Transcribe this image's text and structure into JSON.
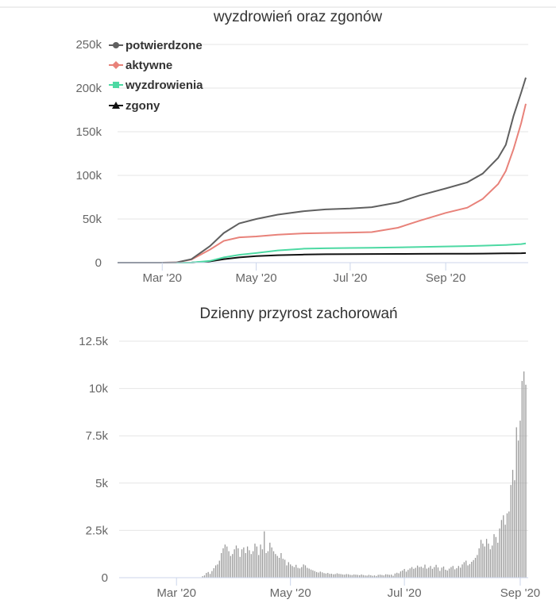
{
  "chart_data": [
    {
      "type": "line",
      "title": "wyzdrowień oraz zgonów",
      "xlabel": "",
      "ylabel": "",
      "x_ticks": [
        "Mar '20",
        "May '20",
        "Jul '20",
        "Sep '20"
      ],
      "y_ticks": [
        "0",
        "50k",
        "100k",
        "150k",
        "200k",
        "250k"
      ],
      "ylim": [
        0,
        250000
      ],
      "grid": true,
      "legend_position": "top-left",
      "x": [
        "2020-02-01",
        "2020-03-01",
        "2020-03-10",
        "2020-03-20",
        "2020-04-01",
        "2020-04-10",
        "2020-04-20",
        "2020-05-01",
        "2020-05-15",
        "2020-06-01",
        "2020-06-15",
        "2020-07-01",
        "2020-07-15",
        "2020-08-01",
        "2020-08-15",
        "2020-09-01",
        "2020-09-15",
        "2020-09-25",
        "2020-10-05",
        "2020-10-10",
        "2020-10-15",
        "2020-10-20",
        "2020-10-23"
      ],
      "series": [
        {
          "name": "potwierdzone",
          "color": "#606060",
          "marker": "circle",
          "values": [
            0,
            0,
            200,
            4000,
            19000,
            34000,
            45000,
            50000,
            55000,
            59000,
            61000,
            62000,
            63500,
            69000,
            77000,
            85000,
            92000,
            102000,
            120000,
            135000,
            168000,
            195000,
            212000
          ]
        },
        {
          "name": "aktywne",
          "color": "#e8827a",
          "marker": "diamond",
          "values": [
            0,
            0,
            180,
            3500,
            15000,
            25000,
            29000,
            30000,
            32000,
            33500,
            34000,
            34500,
            35000,
            40000,
            48000,
            57000,
            63000,
            73000,
            90000,
            105000,
            130000,
            160000,
            182000
          ]
        },
        {
          "name": "wyzdrowienia",
          "color": "#4dd9a3",
          "marker": "square",
          "values": [
            0,
            0,
            0,
            50,
            2000,
            6000,
            9000,
            11000,
            14000,
            16000,
            16500,
            16800,
            17000,
            17500,
            18000,
            18500,
            19000,
            19500,
            20000,
            20300,
            20800,
            21300,
            22000
          ]
        },
        {
          "name": "zgony",
          "color": "#111111",
          "marker": "triangle",
          "values": [
            0,
            0,
            0,
            50,
            1500,
            4000,
            6000,
            7500,
            8500,
            9300,
            9600,
            9800,
            9900,
            10000,
            10100,
            10200,
            10300,
            10400,
            10500,
            10600,
            10700,
            10800,
            11000
          ]
        }
      ]
    },
    {
      "type": "bar",
      "title": "Dzienny przyrost zachorowań",
      "xlabel": "",
      "ylabel": "",
      "x_ticks": [
        "Mar '20",
        "May '20",
        "Jul '20",
        "Sep '20"
      ],
      "y_ticks": [
        "0",
        "2.5k",
        "5k",
        "7.5k",
        "10k",
        "12.5k"
      ],
      "ylim": [
        0,
        12500
      ],
      "grid": true,
      "start_date": "2020-02-01",
      "color": "#999999",
      "values": [
        0,
        0,
        0,
        0,
        0,
        0,
        0,
        0,
        0,
        0,
        0,
        0,
        0,
        0,
        0,
        0,
        0,
        0,
        0,
        0,
        0,
        0,
        0,
        0,
        0,
        0,
        0,
        0,
        0,
        0,
        0,
        0,
        0,
        0,
        0,
        0,
        0,
        0,
        0,
        0,
        0,
        0,
        0,
        80,
        120,
        250,
        300,
        200,
        350,
        500,
        650,
        700,
        900,
        1300,
        1550,
        1750,
        1650,
        1400,
        1150,
        1250,
        1500,
        1700,
        1550,
        1100,
        1500,
        1600,
        1300,
        1650,
        1450,
        1250,
        1400,
        1800,
        1650,
        1200,
        1750,
        1500,
        2450,
        1300,
        1400,
        1850,
        1600,
        1400,
        1250,
        1150,
        1050,
        1300,
        1000,
        950,
        650,
        820,
        700,
        620,
        560,
        680,
        520,
        490,
        560,
        700,
        650,
        520,
        480,
        430,
        390,
        350,
        300,
        270,
        320,
        280,
        240,
        220,
        250,
        200,
        210,
        180,
        190,
        230,
        200,
        190,
        170,
        160,
        190,
        180,
        150,
        140,
        170,
        160,
        150,
        130,
        170,
        140,
        120,
        110,
        150,
        130,
        100,
        120,
        90,
        150,
        160,
        140,
        120,
        180,
        170,
        150,
        160,
        100,
        220,
        260,
        230,
        330,
        380,
        460,
        320,
        410,
        490,
        560,
        470,
        520,
        640,
        560,
        580,
        520,
        690,
        480,
        530,
        620,
        470,
        560,
        680,
        540,
        360,
        530,
        590,
        420,
        380,
        480,
        560,
        620,
        440,
        500,
        620,
        530,
        700,
        820,
        900,
        650,
        720,
        840,
        930,
        1050,
        1200,
        1550,
        2000,
        1800,
        1650,
        2050,
        1800,
        1500,
        1700,
        2300,
        2150,
        1850,
        2600,
        3050,
        3300,
        2800,
        3400,
        3500,
        4900,
        5700,
        5150,
        7950,
        7250,
        8300,
        10400,
        10900,
        10200
      ]
    }
  ]
}
